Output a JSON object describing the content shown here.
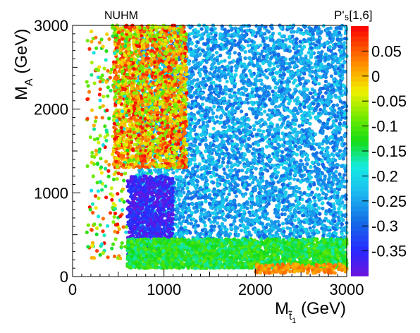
{
  "chart_data": {
    "type": "scatter",
    "title": "NUHM",
    "xlabel": {
      "main": "M",
      "sub": "t̃",
      "subsub": "1",
      "unit": " (GeV)"
    },
    "ylabel": {
      "main": "M",
      "sub": "A",
      "unit": " (GeV)"
    },
    "xlim": [
      0,
      3000
    ],
    "ylim": [
      0,
      3000
    ],
    "xticks": [
      "0",
      "1000",
      "2000",
      "3000"
    ],
    "yticks": [
      "0",
      "1000",
      "2000",
      "3000"
    ],
    "colorbar": {
      "label": "P'₅[1,6]",
      "range": [
        -0.4,
        0.1
      ],
      "ticks": [
        "0.05",
        "0",
        "-0.05",
        "-0.1",
        "-0.15",
        "-0.2",
        "-0.25",
        "-0.3",
        "-0.35"
      ],
      "tick_values": [
        0.05,
        0,
        -0.05,
        -0.1,
        -0.15,
        -0.2,
        -0.25,
        -0.3,
        -0.35
      ]
    },
    "regions": [
      {
        "description": "low M_stop edge",
        "x": [
          150,
          550
        ],
        "y": [
          200,
          3000
        ],
        "value_range": [
          -0.2,
          0.1
        ]
      },
      {
        "description": "low M_A band",
        "x": [
          600,
          3000
        ],
        "y": [
          100,
          450
        ],
        "value_range": [
          -0.17,
          -0.1
        ]
      },
      {
        "description": "bulk",
        "x": [
          700,
          3000
        ],
        "y": [
          450,
          3000
        ],
        "value_range": [
          -0.3,
          -0.2
        ]
      },
      {
        "description": "low M_A, low M_stop pocket",
        "x": [
          600,
          1100
        ],
        "y": [
          250,
          1200
        ],
        "value_range": [
          -0.4,
          -0.3
        ]
      },
      {
        "description": "high M_A, low M_stop",
        "x": [
          400,
          1200
        ],
        "y": [
          1500,
          3000
        ],
        "value_range": [
          0.0,
          0.1
        ]
      },
      {
        "description": "bottom edge",
        "x": [
          2000,
          3000
        ],
        "y": [
          50,
          150
        ],
        "value_range": [
          0.0,
          0.05
        ]
      }
    ],
    "grid": false,
    "legend": "colorbar-right"
  }
}
